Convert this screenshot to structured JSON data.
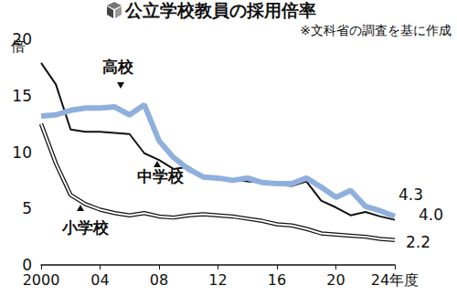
{
  "chart_data": {
    "type": "line",
    "title": "公立学校教員の採用倍率",
    "subtitle": "※文科省の調査を基に作成",
    "y_label": "倍",
    "categories": [
      "2000",
      null,
      null,
      null,
      "04",
      null,
      null,
      null,
      "08",
      null,
      null,
      null,
      "12",
      null,
      null,
      null,
      "16",
      null,
      null,
      null,
      "20",
      null,
      null,
      null,
      "24年度"
    ],
    "series": [
      {
        "name": "小学校",
        "color": "#ffffff",
        "line_style": "outlined",
        "values": [
          12.5,
          9.0,
          6.2,
          5.4,
          4.9,
          4.6,
          4.4,
          4.6,
          4.3,
          4.2,
          4.4,
          4.5,
          4.4,
          4.3,
          4.1,
          3.9,
          3.6,
          3.5,
          3.2,
          2.8,
          2.7,
          2.6,
          2.5,
          2.3,
          2.2
        ]
      },
      {
        "name": "中学校",
        "color": "#111111",
        "line_style": "solid",
        "values": [
          17.9,
          16.0,
          12.0,
          11.8,
          11.8,
          11.7,
          11.6,
          9.9,
          9.3,
          8.5,
          8.7,
          7.8,
          7.7,
          7.6,
          7.4,
          7.3,
          7.1,
          7.0,
          7.4,
          5.7,
          5.1,
          4.4,
          4.7,
          4.3,
          4.0
        ]
      },
      {
        "name": "高校",
        "color": "#8fb0dd",
        "line_style": "thick",
        "values": [
          13.2,
          13.3,
          13.7,
          13.9,
          13.9,
          14.0,
          13.3,
          14.2,
          11.0,
          9.5,
          8.5,
          7.8,
          7.7,
          7.5,
          7.7,
          7.3,
          7.2,
          7.2,
          7.7,
          6.9,
          6.0,
          6.6,
          5.2,
          4.8,
          4.3
        ]
      }
    ],
    "annotations": [
      {
        "text": "2.2",
        "series": "小学校"
      },
      {
        "text": "4.0",
        "series": "中学校"
      },
      {
        "text": "4.3",
        "series": "高校"
      }
    ],
    "ylim": [
      0,
      20
    ],
    "yticks": [
      0,
      5,
      10,
      15,
      20
    ],
    "grid": false
  }
}
